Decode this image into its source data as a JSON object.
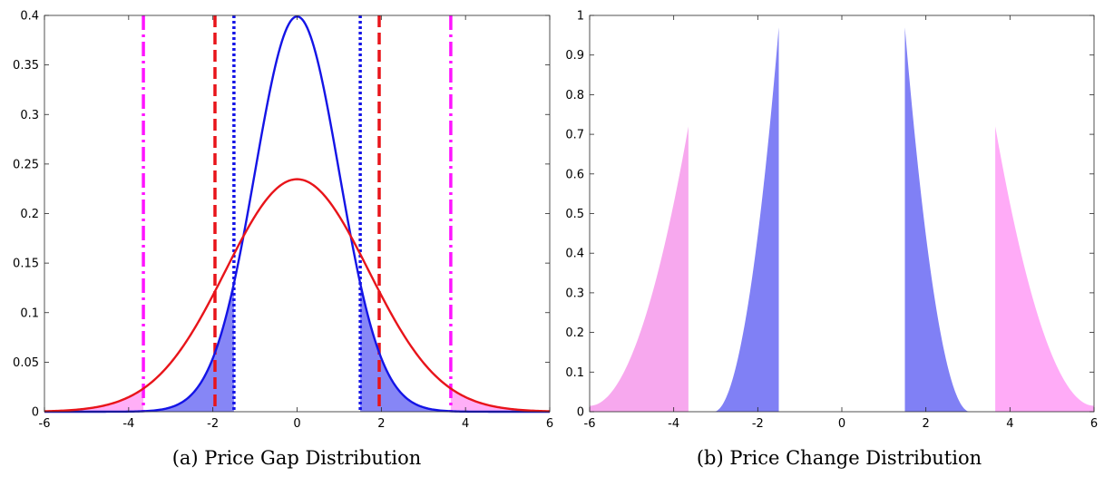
{
  "colors": {
    "red": "#e8141a",
    "blue": "#1414e6",
    "magenta": "#ff14ff",
    "blue_fill": "#8080f5",
    "pink_fill": "#ffabf7",
    "pink_fill_left": "#f7a8ee"
  },
  "chart_data": [
    {
      "type": "line",
      "caption": "(a) Price Gap Distribution",
      "xlim": [
        -6,
        6
      ],
      "ylim": [
        0,
        0.4
      ],
      "xticks": [
        "-6",
        "-4",
        "-2",
        "0",
        "2",
        "4",
        "6"
      ],
      "yticks": [
        "0",
        "0.05",
        "0.1",
        "0.15",
        "0.2",
        "0.25",
        "0.3",
        "0.35",
        "0.4"
      ],
      "series": [
        {
          "curve": "normal-pdf",
          "sigma": 1.0,
          "peak": 0.399,
          "color": "blue"
        },
        {
          "curve": "normal-pdf",
          "sigma": 1.7,
          "peak": 0.235,
          "color": "red"
        }
      ],
      "vertical_lines": [
        {
          "x": -3.65,
          "style": "dash-dot",
          "color": "magenta"
        },
        {
          "x": 3.65,
          "style": "dash-dot",
          "color": "magenta"
        },
        {
          "x": -1.95,
          "style": "dashed",
          "color": "red"
        },
        {
          "x": 1.95,
          "style": "dashed",
          "color": "red"
        },
        {
          "x": -1.5,
          "style": "dotted",
          "color": "blue"
        },
        {
          "x": 1.5,
          "style": "dotted",
          "color": "blue"
        }
      ],
      "shaded_regions": [
        {
          "under": "blue-curve",
          "from": -6,
          "to": -1.5,
          "color": "blue_fill"
        },
        {
          "under": "blue-curve",
          "from": 1.5,
          "to": 6,
          "color": "blue_fill"
        },
        {
          "under": "red-curve",
          "from": -6,
          "to": -3.65,
          "color": "pink_fill"
        },
        {
          "under": "red-curve",
          "from": 3.65,
          "to": 6,
          "color": "pink_fill"
        }
      ]
    },
    {
      "type": "area",
      "caption": "(b) Price Change Distribution",
      "xlim": [
        -6,
        6
      ],
      "ylim": [
        0,
        1
      ],
      "xticks": [
        "-6",
        "-4",
        "-2",
        "0",
        "2",
        "4",
        "6"
      ],
      "yticks": [
        "0",
        "0.1",
        "0.2",
        "0.3",
        "0.4",
        "0.5",
        "0.6",
        "0.7",
        "0.8",
        "0.9",
        "1"
      ],
      "areas": [
        {
          "from": -6,
          "to": -3.65,
          "y_start": 0.015,
          "y_end": 0.72,
          "rising": true,
          "color": "pink_fill_left"
        },
        {
          "from": -3.05,
          "to": -1.5,
          "y_start": 0.0,
          "y_end": 0.97,
          "rising": true,
          "color": "blue_fill"
        },
        {
          "from": 1.5,
          "to": 3.05,
          "y_start": 0.97,
          "y_end": 0.0,
          "rising": false,
          "color": "blue_fill"
        },
        {
          "from": 3.65,
          "to": 6,
          "y_start": 0.72,
          "y_end": 0.015,
          "rising": false,
          "color": "pink_fill"
        }
      ]
    }
  ]
}
